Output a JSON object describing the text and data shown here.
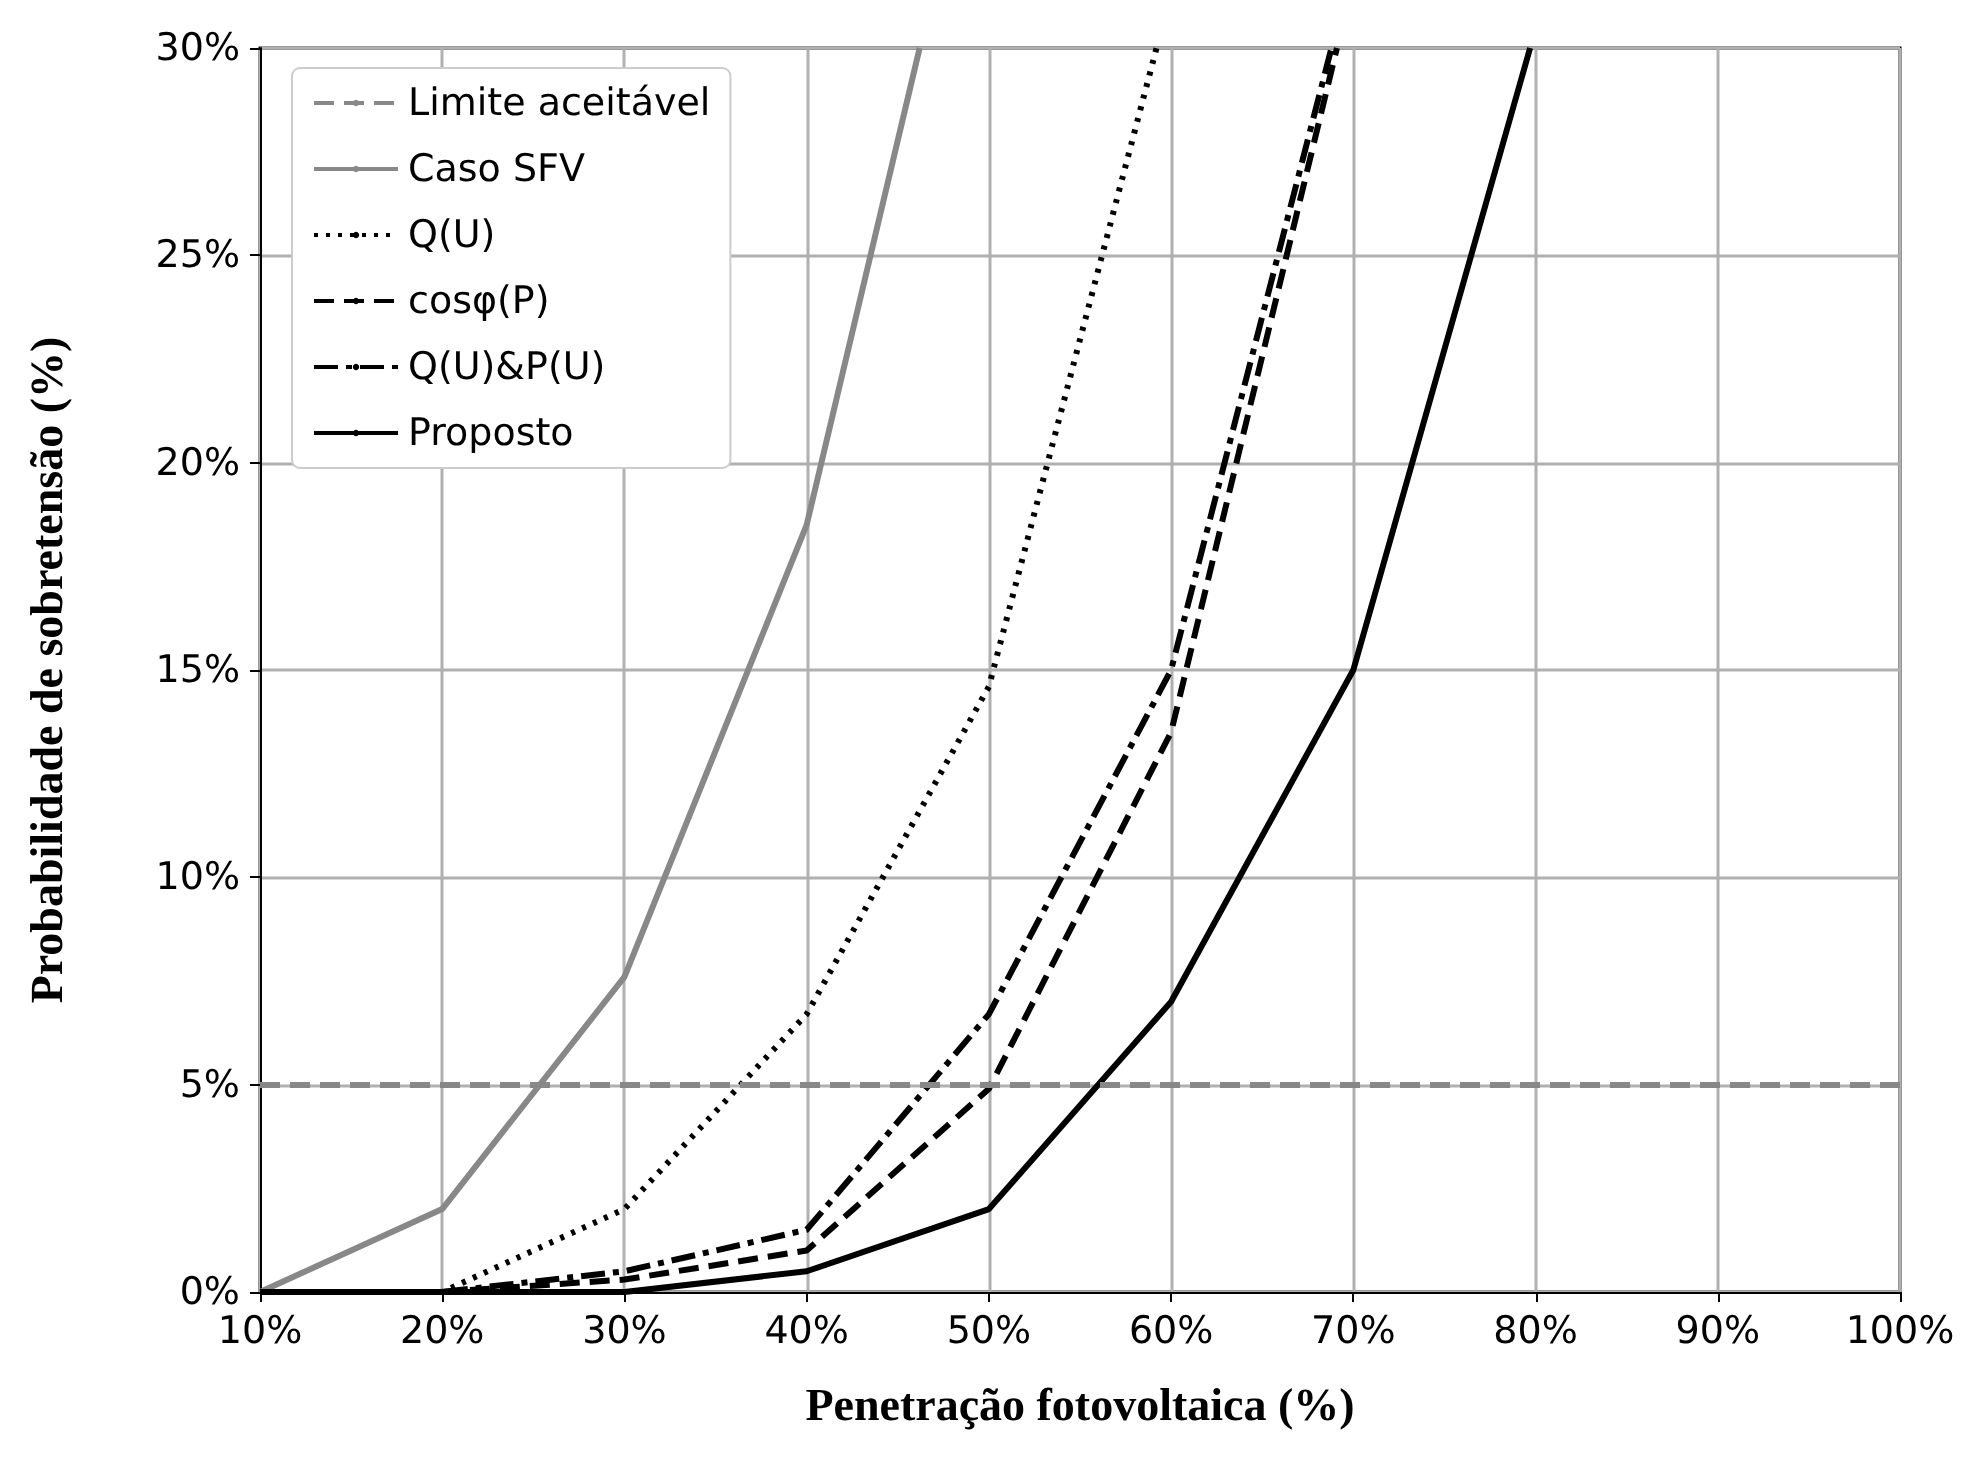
{
  "chart_data": {
    "type": "line",
    "xlabel": "Penetração fotovoltaica (%)",
    "ylabel": "Probabilidade de sobretensão (%)",
    "xlim": [
      10,
      100
    ],
    "xticks": [
      {
        "value": 10,
        "label": "10%"
      },
      {
        "value": 20,
        "label": "20%"
      },
      {
        "value": 30,
        "label": "30%"
      },
      {
        "value": 40,
        "label": "40%"
      },
      {
        "value": 50,
        "label": "50%"
      },
      {
        "value": 60,
        "label": "60%"
      },
      {
        "value": 70,
        "label": "70%"
      },
      {
        "value": 80,
        "label": "80%"
      },
      {
        "value": 90,
        "label": "90%"
      },
      {
        "value": 100,
        "label": "100%"
      }
    ],
    "ylim": [
      0,
      30
    ],
    "yticks": [
      {
        "value": 0,
        "label": "0%"
      },
      {
        "value": 5,
        "label": "5%"
      },
      {
        "value": 10,
        "label": "10%"
      },
      {
        "value": 15,
        "label": "15%"
      },
      {
        "value": 20,
        "label": "20%"
      },
      {
        "value": 25,
        "label": "25%"
      },
      {
        "value": 30,
        "label": "30%"
      }
    ],
    "grid": true,
    "legend": "top left",
    "marker": "none",
    "ref_lines": [
      {
        "axis": "y",
        "value": 5,
        "label": "Limite aceitável",
        "color": "#888888",
        "line_style": "dashed"
      }
    ],
    "series": [
      {
        "name": "Caso SFV",
        "color": "#888888",
        "line_style": "solid",
        "x": [
          10,
          20,
          30,
          40,
          46.2
        ],
        "values": [
          0,
          2.0,
          7.6,
          18.5,
          30
        ]
      },
      {
        "name": "Q(U)",
        "color": "#000000",
        "line_style": "dotted",
        "x": [
          10,
          20,
          30,
          40,
          50,
          59.2
        ],
        "values": [
          0,
          0,
          2.0,
          6.7,
          14.6,
          30
        ]
      },
      {
        "name": "cosφ(P)",
        "color": "#000000",
        "line_style": "dashed",
        "x": [
          10,
          20,
          30,
          40,
          50,
          60,
          69.1
        ],
        "values": [
          0,
          0,
          0.3,
          1.0,
          4.9,
          13.5,
          30
        ]
      },
      {
        "name": "Q(U)&P(U)",
        "color": "#000000",
        "line_style": "dashdot",
        "x": [
          10,
          20,
          30,
          40,
          50,
          60,
          68.8
        ],
        "values": [
          0,
          0,
          0.5,
          1.5,
          6.7,
          15.0,
          30
        ]
      },
      {
        "name": "Proposto",
        "color": "#000000",
        "line_style": "solid",
        "x": [
          10,
          20,
          30,
          40,
          50,
          60,
          70,
          79.7
        ],
        "values": [
          0,
          0,
          0,
          0.5,
          2.0,
          7.0,
          15.0,
          30
        ]
      }
    ]
  }
}
